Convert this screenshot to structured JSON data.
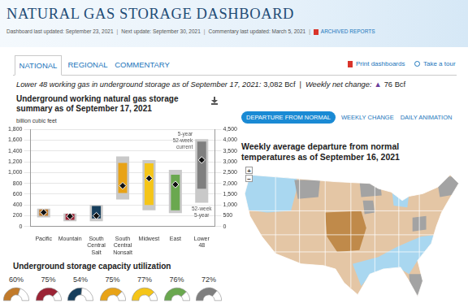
{
  "header": {
    "title": "NATURAL GAS STORAGE DASHBOARD",
    "updates": [
      "Dashboard last updated: September 23, 2021",
      "Next update: September 30, 2021",
      "Commentary last updated: March 5, 2021"
    ],
    "separator": "|",
    "archived": "ARCHIVED REPORTS"
  },
  "tabs": [
    "NATIONAL",
    "REGIONAL",
    "COMMENTARY"
  ],
  "actions": [
    "Print dashboards",
    "Take a tour"
  ],
  "summary": {
    "text": "Lower 48 working gas in underground storage as of September 17, 2021:",
    "total": "3,082 Bcf",
    "separator": "|",
    "change_text": "Weekly net change:",
    "change_symbol": "▲",
    "change": "76 Bcf"
  },
  "chart_data": [
    {
      "type": "bar",
      "title": "Underground working natural gas storage summary as of September 17, 2021",
      "y_label": "billion cubic feet",
      "categories": [
        "Pacific",
        "Mountain",
        "South Central Salt",
        "South Central Nonsalt",
        "Midwest",
        "East",
        "Lower 48"
      ],
      "series": [
        {
          "name": "5-year",
          "axis": "y",
          "color": "#c9c9c9",
          "values": [
            [
              170,
              330
            ],
            [
              100,
              240
            ],
            [
              100,
              400
            ],
            [
              500,
              1300
            ],
            [
              300,
              1230
            ],
            [
              250,
              1050
            ],
            null
          ]
        },
        {
          "name": "52-week",
          "axis": "y",
          "colors": [
            "#c17a2a",
            "#9b2335",
            "#163e5c",
            "#e8a317",
            "#f5c518",
            "#6aa84f",
            "#7f7f7f"
          ],
          "values": [
            [
              200,
              315
            ],
            [
              125,
              235
            ],
            [
              150,
              380
            ],
            [
              620,
              1180
            ],
            [
              400,
              1170
            ],
            [
              300,
              960
            ],
            null
          ]
        },
        {
          "name": "current",
          "axis": "y",
          "type": "scatter",
          "marker": "diamond",
          "color": "#111111",
          "values": [
            263,
            191,
            199,
            756,
            893,
            779,
            null
          ]
        },
        {
          "name": "5-year",
          "axis": "y2",
          "color": "#c9c9c9",
          "values": [
            null,
            null,
            null,
            null,
            null,
            null,
            [
              1100,
              4050
            ]
          ]
        },
        {
          "name": "52-week",
          "axis": "y2",
          "color": "#7f7f7f",
          "values": [
            null,
            null,
            null,
            null,
            null,
            null,
            [
              1750,
              3930
            ]
          ]
        },
        {
          "name": "current",
          "axis": "y2",
          "type": "scatter",
          "marker": "diamond",
          "color": "#111111",
          "values": [
            null,
            null,
            null,
            null,
            null,
            null,
            3082
          ]
        }
      ],
      "annotations": [
        "5-year",
        "52-week",
        "current",
        "52-week",
        "5-year"
      ],
      "ylim": [
        0,
        1800
      ],
      "yticks": [
        0,
        200,
        400,
        600,
        800,
        {
          "value": 1000,
          "label": "1,000"
        },
        {
          "value": 1200,
          "label": "1,200"
        },
        {
          "value": 1400,
          "label": "1,400"
        },
        {
          "value": 1600,
          "label": "1,600"
        },
        {
          "value": 1800,
          "label": "1,800"
        }
      ],
      "y2lim": [
        0,
        4500
      ],
      "y2ticks": [
        0,
        500,
        {
          "value": 1000,
          "label": "1,000"
        },
        {
          "value": 1500,
          "label": "1,500"
        },
        {
          "value": 2000,
          "label": "2,000"
        },
        {
          "value": 2500,
          "label": "2,500"
        },
        {
          "value": 3000,
          "label": "3,000"
        },
        {
          "value": 3500,
          "label": "3,500"
        },
        {
          "value": 4000,
          "label": "4,000"
        },
        {
          "value": 4500,
          "label": "4,500"
        }
      ],
      "grid": true
    },
    {
      "type": "gauge",
      "title": "Underground storage capacity utilization",
      "values": [
        60,
        75,
        54,
        75,
        77,
        76,
        72
      ],
      "value_labels": [
        "60%",
        "75%",
        "54%",
        "75%",
        "77%",
        "76%",
        "72%"
      ],
      "colors": [
        "#c17a2a",
        "#9b2335",
        "#163e5c",
        "#e8a317",
        "#f5c518",
        "#6aa84f",
        "#7f7f7f"
      ],
      "ylim": [
        0,
        100
      ],
      "data_labels": true
    }
  ],
  "map": {
    "tabs": [
      "DEPARTURE FROM NORMAL",
      "WEEKLY CHANGE",
      "DAILY ANIMATION"
    ],
    "title": "Weekly average departure from normal temperatures as of September 16, 2021",
    "zoom": [
      "+",
      "−"
    ]
  }
}
